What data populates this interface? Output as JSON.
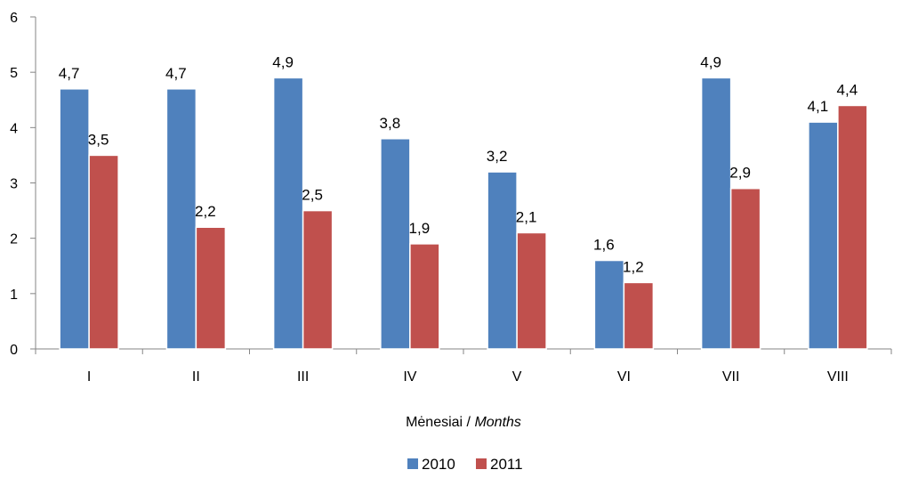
{
  "chart_data": {
    "type": "bar",
    "categories": [
      "I",
      "II",
      "III",
      "IV",
      "V",
      "VI",
      "VII",
      "VIII"
    ],
    "series": [
      {
        "name": "2010",
        "values": [
          4.7,
          4.7,
          4.9,
          3.8,
          3.2,
          1.6,
          4.9,
          4.1
        ],
        "labels": [
          "4,7",
          "4,7",
          "4,9",
          "3,8",
          "3,2",
          "1,6",
          "4,9",
          "4,1"
        ],
        "color": "#4F81BD"
      },
      {
        "name": "2011",
        "values": [
          3.5,
          2.2,
          2.5,
          1.9,
          2.1,
          1.2,
          2.9,
          4.4
        ],
        "labels": [
          "3,5",
          "2,2",
          "2,5",
          "1,9",
          "2,1",
          "1,2",
          "2,9",
          "4,4"
        ],
        "color": "#C0504D"
      }
    ],
    "ylim": [
      0,
      6
    ],
    "yticks": [
      0,
      1,
      2,
      3,
      4,
      5,
      6
    ],
    "xlabel": "Mėnesiai / Months",
    "xlabel_parts": {
      "plain": "Mėnesiai / ",
      "italic": "Months"
    },
    "ylabel": "",
    "grid": false,
    "legend_position": "bottom"
  }
}
